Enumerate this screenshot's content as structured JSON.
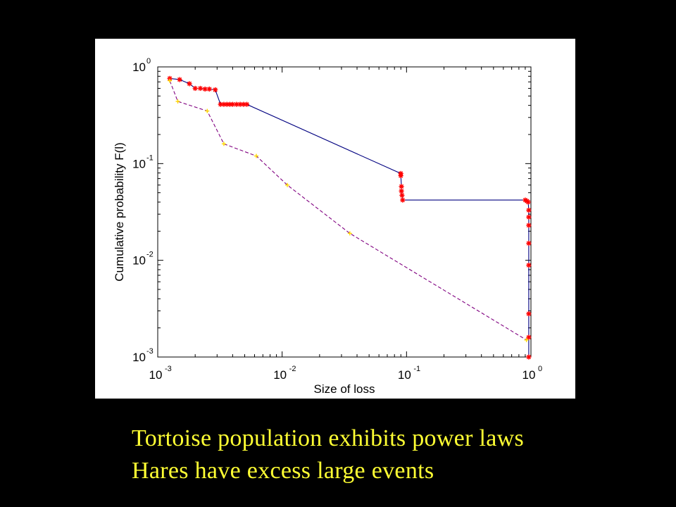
{
  "captions": [
    "Tortoise population exhibits power laws",
    "Hares have excess large events"
  ],
  "colors": {
    "background": "#000000",
    "caption": "#ffff33",
    "hare_line": "#000080",
    "hare_marker": "#ff0000",
    "tortoise_line": "#800080",
    "tortoise_marker": "#ffd700"
  },
  "chart_data": {
    "type": "line",
    "xlabel": "Size of loss",
    "ylabel": "Cumulative probability F(l)",
    "xscale": "log",
    "yscale": "log",
    "xlim": [
      0.001,
      1
    ],
    "ylim": [
      0.001,
      1
    ],
    "grid": false,
    "x_ticks": [
      {
        "base": "10",
        "exp": "-3"
      },
      {
        "base": "10",
        "exp": "-2"
      },
      {
        "base": "10",
        "exp": "-1"
      },
      {
        "base": "10",
        "exp": "0"
      }
    ],
    "y_ticks": [
      {
        "base": "10",
        "exp": "0"
      },
      {
        "base": "10",
        "exp": "-1"
      },
      {
        "base": "10",
        "exp": "-2"
      },
      {
        "base": "10",
        "exp": "-3"
      }
    ],
    "series": [
      {
        "style": "solid",
        "color": "#000080",
        "marker": "asterisk",
        "marker_color": "#ff0000",
        "points": [
          [
            0.00125,
            0.76
          ],
          [
            0.0015,
            0.74
          ],
          [
            0.0018,
            0.67
          ],
          [
            0.002,
            0.6
          ],
          [
            0.0022,
            0.6
          ],
          [
            0.0024,
            0.59
          ],
          [
            0.0026,
            0.59
          ],
          [
            0.0029,
            0.58
          ],
          [
            0.0032,
            0.41
          ],
          [
            0.0034,
            0.41
          ],
          [
            0.0036,
            0.41
          ],
          [
            0.0038,
            0.41
          ],
          [
            0.004,
            0.41
          ],
          [
            0.0043,
            0.41
          ],
          [
            0.0046,
            0.41
          ],
          [
            0.0049,
            0.41
          ],
          [
            0.0052,
            0.41
          ],
          [
            0.09,
            0.079
          ],
          [
            0.09,
            0.075
          ],
          [
            0.091,
            0.058
          ],
          [
            0.091,
            0.052
          ],
          [
            0.092,
            0.047
          ],
          [
            0.093,
            0.042
          ],
          [
            0.9,
            0.042
          ],
          [
            0.93,
            0.041
          ],
          [
            0.95,
            0.04
          ],
          [
            0.96,
            0.033
          ],
          [
            0.96,
            0.028
          ],
          [
            0.96,
            0.023
          ],
          [
            0.96,
            0.015
          ],
          [
            0.96,
            0.0089
          ],
          [
            0.96,
            0.0028
          ],
          [
            0.96,
            0.0016
          ],
          [
            0.96,
            0.001
          ]
        ]
      },
      {
        "style": "dashed",
        "color": "#800080",
        "marker": "cross",
        "marker_color": "#ffd700",
        "points": [
          [
            0.00125,
            0.72
          ],
          [
            0.00145,
            0.44
          ],
          [
            0.0025,
            0.35
          ],
          [
            0.0034,
            0.16
          ],
          [
            0.0062,
            0.12
          ],
          [
            0.011,
            0.06
          ],
          [
            0.035,
            0.019
          ],
          [
            0.92,
            0.0015
          ]
        ]
      }
    ]
  }
}
